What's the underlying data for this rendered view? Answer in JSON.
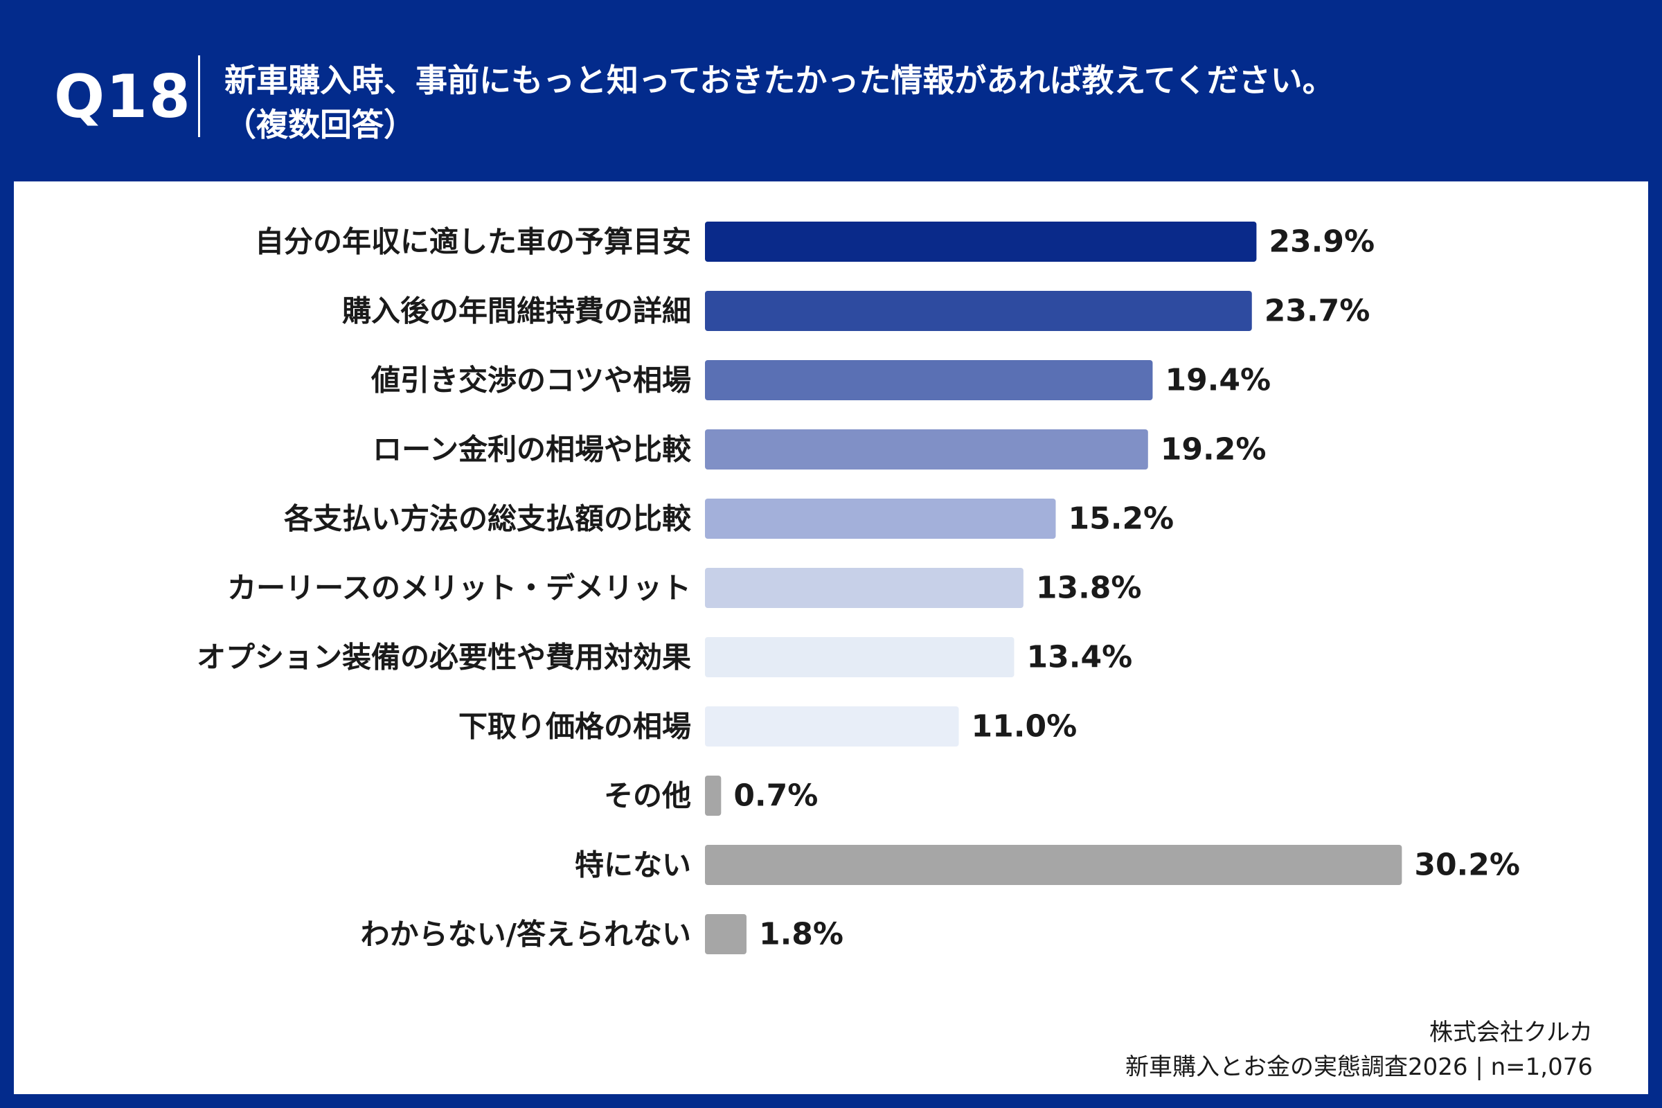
{
  "header": {
    "question_number": "Q18",
    "question_text": "新車購入時、事前にもっと知っておきたかった情報があれば教えてください。",
    "question_note": "（複数回答）"
  },
  "colors": {
    "header_bg": "#032b8c",
    "panel_bg": "#ffffff"
  },
  "chart_data": {
    "type": "bar",
    "orientation": "horizontal",
    "title": "新車購入時、事前にもっと知っておきたかった情報があれば教えてください。（複数回答）",
    "categories": [
      "自分の年収に適した車の予算目安",
      "購入後の年間維持費の詳細",
      "値引き交渉のコツや相場",
      "ローン金利の相場や比較",
      "各支払い方法の総支払額の比較",
      "カーリースのメリット・デメリット",
      "オプション装備の必要性や費用対効果",
      "下取り価格の相場",
      "その他",
      "特にない",
      "わからない/答えられない"
    ],
    "values": [
      23.9,
      23.7,
      19.4,
      19.2,
      15.2,
      13.8,
      13.4,
      11.0,
      0.7,
      30.2,
      1.8
    ],
    "value_labels": [
      "23.9%",
      "23.7%",
      "19.4%",
      "19.2%",
      "15.2%",
      "13.8%",
      "13.4%",
      "11.0%",
      "0.7%",
      "30.2%",
      "1.8%"
    ],
    "bar_colors": [
      "#0a2a8a",
      "#2e4ba0",
      "#5a70b4",
      "#8090c6",
      "#a3b0da",
      "#c7d0e8",
      "#e5ecf6",
      "#e8eef8",
      "#a6a6a6",
      "#a6a6a6",
      "#a6a6a6"
    ],
    "unit": "%",
    "xlabel": "",
    "ylabel": "",
    "xlim": [
      0,
      31
    ],
    "grid": false,
    "legend": "none"
  },
  "footer": {
    "company": "株式会社クルカ",
    "source": "新車購入とお金の実態調査2026 | n=1,076"
  }
}
